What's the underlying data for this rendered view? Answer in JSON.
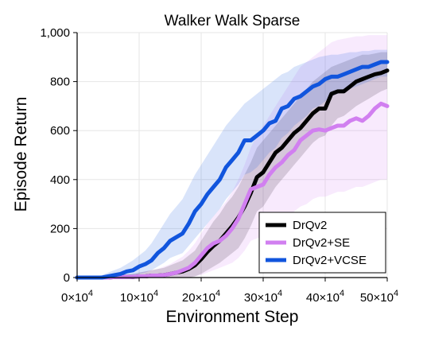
{
  "chart_data": {
    "type": "line",
    "title": "Walker Walk Sparse",
    "xlabel": "Environment Step",
    "ylabel": "Episode Return",
    "xlim": [
      0,
      500000
    ],
    "ylim": [
      0,
      1000
    ],
    "x_ticks": [
      {
        "value": 0,
        "mantissa": "0×10",
        "exp": "4"
      },
      {
        "value": 100000,
        "mantissa": "10×10",
        "exp": "4"
      },
      {
        "value": 200000,
        "mantissa": "20×10",
        "exp": "4"
      },
      {
        "value": 300000,
        "mantissa": "30×10",
        "exp": "4"
      },
      {
        "value": 400000,
        "mantissa": "40×10",
        "exp": "4"
      },
      {
        "value": 500000,
        "mantissa": "50×10",
        "exp": "4"
      }
    ],
    "y_ticks": [
      {
        "value": 0,
        "label": "0"
      },
      {
        "value": 200,
        "label": "200"
      },
      {
        "value": 400,
        "label": "400"
      },
      {
        "value": 600,
        "label": "600"
      },
      {
        "value": 800,
        "label": "800"
      },
      {
        "value": 1000,
        "label": "1,000"
      }
    ],
    "grid": true,
    "legend_position": "bottom-right",
    "x": [
      0,
      10000,
      20000,
      30000,
      40000,
      50000,
      60000,
      70000,
      80000,
      90000,
      100000,
      110000,
      120000,
      130000,
      140000,
      150000,
      160000,
      170000,
      180000,
      190000,
      200000,
      210000,
      220000,
      230000,
      240000,
      250000,
      260000,
      270000,
      280000,
      290000,
      300000,
      310000,
      320000,
      330000,
      340000,
      350000,
      360000,
      370000,
      380000,
      390000,
      400000,
      410000,
      420000,
      430000,
      440000,
      450000,
      460000,
      470000,
      480000,
      490000,
      500000
    ],
    "series": [
      {
        "name": "DrQv2",
        "color": "#000000",
        "values": [
          0,
          0,
          0,
          0,
          0,
          0,
          2,
          2,
          3,
          2,
          5,
          5,
          8,
          8,
          10,
          15,
          20,
          25,
          35,
          50,
          75,
          105,
          130,
          150,
          180,
          210,
          245,
          290,
          345,
          410,
          430,
          470,
          510,
          530,
          560,
          590,
          610,
          640,
          670,
          690,
          690,
          750,
          760,
          760,
          780,
          800,
          810,
          820,
          830,
          835,
          845
        ],
        "upper": [
          0,
          0,
          0,
          0,
          2,
          5,
          8,
          10,
          12,
          15,
          20,
          25,
          30,
          35,
          40,
          50,
          60,
          70,
          90,
          110,
          150,
          190,
          230,
          260,
          300,
          330,
          370,
          420,
          470,
          530,
          560,
          590,
          620,
          650,
          680,
          710,
          740,
          770,
          800,
          820,
          840,
          860,
          870,
          880,
          890,
          900,
          910,
          910,
          915,
          920,
          920
        ],
        "lower": [
          0,
          0,
          0,
          0,
          0,
          0,
          0,
          0,
          0,
          0,
          0,
          0,
          0,
          0,
          0,
          0,
          0,
          0,
          0,
          5,
          15,
          30,
          45,
          60,
          80,
          100,
          120,
          160,
          210,
          270,
          290,
          330,
          370,
          400,
          430,
          460,
          490,
          520,
          550,
          570,
          580,
          620,
          650,
          660,
          680,
          700,
          715,
          730,
          745,
          760,
          770
        ]
      },
      {
        "name": "DrQv2+SE",
        "color": "#d17ff0",
        "values": [
          0,
          0,
          0,
          0,
          0,
          0,
          2,
          2,
          3,
          3,
          5,
          5,
          8,
          8,
          10,
          15,
          20,
          30,
          40,
          60,
          90,
          120,
          140,
          150,
          170,
          200,
          240,
          300,
          360,
          370,
          380,
          420,
          450,
          470,
          500,
          520,
          560,
          580,
          600,
          605,
          600,
          610,
          620,
          620,
          640,
          650,
          640,
          660,
          690,
          710,
          700
        ],
        "upper": [
          0,
          0,
          0,
          0,
          2,
          5,
          8,
          10,
          12,
          15,
          20,
          25,
          30,
          35,
          45,
          55,
          70,
          85,
          110,
          140,
          180,
          220,
          250,
          280,
          310,
          350,
          400,
          460,
          530,
          580,
          620,
          660,
          700,
          740,
          780,
          820,
          860,
          880,
          900,
          920,
          940,
          960,
          970,
          975,
          980,
          985,
          985,
          990,
          990,
          990,
          990
        ],
        "lower": [
          0,
          0,
          0,
          0,
          0,
          0,
          0,
          0,
          0,
          0,
          0,
          0,
          0,
          0,
          0,
          0,
          0,
          0,
          0,
          5,
          10,
          20,
          30,
          40,
          50,
          60,
          80,
          110,
          150,
          160,
          170,
          190,
          210,
          230,
          250,
          270,
          290,
          300,
          320,
          330,
          330,
          340,
          350,
          350,
          360,
          370,
          370,
          380,
          390,
          400,
          400
        ]
      },
      {
        "name": "DrQv2+VCSE",
        "color": "#1155dd",
        "values": [
          0,
          0,
          0,
          0,
          0,
          5,
          10,
          15,
          25,
          30,
          45,
          55,
          70,
          100,
          120,
          150,
          165,
          180,
          220,
          270,
          300,
          340,
          370,
          400,
          450,
          480,
          510,
          560,
          560,
          580,
          600,
          630,
          640,
          690,
          700,
          730,
          740,
          760,
          780,
          790,
          810,
          820,
          820,
          830,
          840,
          850,
          860,
          860,
          870,
          880,
          880
        ],
        "upper": [
          0,
          0,
          0,
          5,
          10,
          20,
          30,
          40,
          55,
          70,
          90,
          110,
          140,
          180,
          220,
          260,
          290,
          320,
          370,
          420,
          460,
          500,
          540,
          580,
          620,
          650,
          680,
          710,
          730,
          750,
          770,
          790,
          810,
          830,
          840,
          860,
          870,
          880,
          890,
          900,
          905,
          910,
          910,
          915,
          920,
          920,
          925,
          925,
          930,
          930,
          930
        ],
        "lower": [
          0,
          0,
          0,
          0,
          0,
          0,
          0,
          0,
          5,
          10,
          15,
          20,
          30,
          45,
          60,
          80,
          90,
          100,
          130,
          160,
          190,
          220,
          250,
          280,
          320,
          350,
          380,
          420,
          430,
          450,
          480,
          510,
          530,
          570,
          590,
          620,
          640,
          660,
          690,
          700,
          720,
          740,
          750,
          760,
          770,
          780,
          790,
          800,
          810,
          820,
          820
        ]
      }
    ]
  }
}
